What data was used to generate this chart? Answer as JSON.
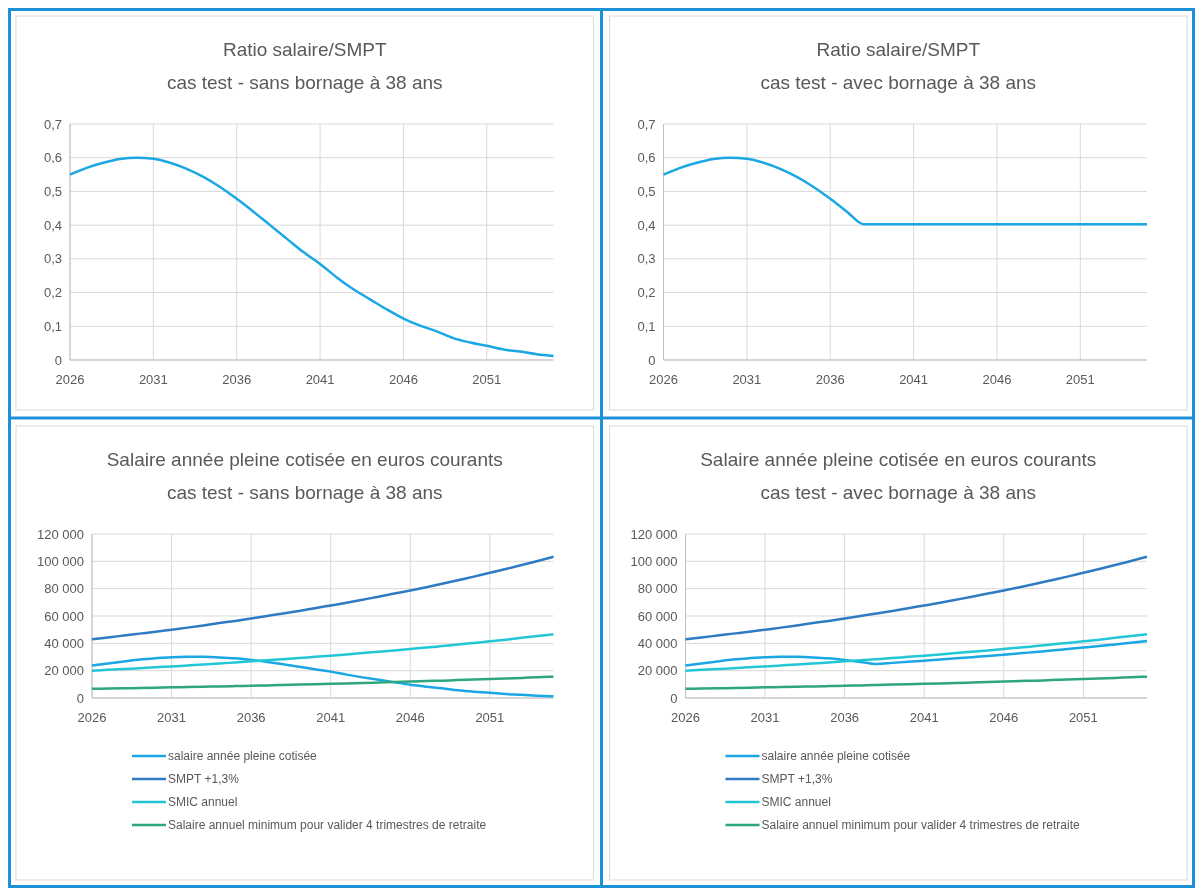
{
  "chart_data": [
    {
      "type": "line",
      "title": "Ratio salaire/SMPT\ncas test - sans bornage à 38 ans",
      "x": [
        2026,
        2027,
        2028,
        2029,
        2030,
        2031,
        2032,
        2033,
        2034,
        2035,
        2036,
        2037,
        2038,
        2039,
        2040,
        2041,
        2042,
        2043,
        2044,
        2045,
        2046,
        2047,
        2048,
        2049,
        2050,
        2051,
        2052,
        2053,
        2054,
        2055
      ],
      "series": [
        {
          "color": "#1aa7e4",
          "values": [
            0.55,
            0.57,
            0.585,
            0.596,
            0.6,
            0.597,
            0.585,
            0.567,
            0.543,
            0.513,
            0.478,
            0.44,
            0.4,
            0.36,
            0.32,
            0.285,
            0.245,
            0.21,
            0.18,
            0.15,
            0.123,
            0.102,
            0.085,
            0.065,
            0.052,
            0.042,
            0.031,
            0.025,
            0.017,
            0.012
          ]
        }
      ],
      "xlim": [
        2026,
        2055
      ],
      "xticks": [
        2026,
        2031,
        2036,
        2041,
        2046,
        2051
      ],
      "ylim": [
        0,
        0.7
      ],
      "yticks": [
        {
          "value": 0,
          "label": "0"
        },
        {
          "value": 0.1,
          "label": "0,1"
        },
        {
          "value": 0.2,
          "label": "0,2"
        },
        {
          "value": 0.3,
          "label": "0,3"
        },
        {
          "value": 0.4,
          "label": "0,4"
        },
        {
          "value": 0.5,
          "label": "0,5"
        },
        {
          "value": 0.6,
          "label": "0,6"
        },
        {
          "value": 0.7,
          "label": "0,7"
        }
      ],
      "grid": true,
      "legend": false
    },
    {
      "type": "line",
      "title": "Ratio salaire/SMPT\ncas test - avec bornage à 38 ans",
      "x": [
        2026,
        2027,
        2028,
        2029,
        2030,
        2031,
        2032,
        2033,
        2034,
        2035,
        2036,
        2037,
        2038,
        2039,
        2040,
        2041,
        2042,
        2043,
        2044,
        2045,
        2046,
        2047,
        2048,
        2049,
        2050,
        2051,
        2052,
        2053,
        2054,
        2055
      ],
      "series": [
        {
          "color": "#1aa7e4",
          "values": [
            0.55,
            0.57,
            0.585,
            0.596,
            0.6,
            0.597,
            0.585,
            0.567,
            0.543,
            0.513,
            0.478,
            0.44,
            0.403,
            0.403,
            0.403,
            0.403,
            0.403,
            0.403,
            0.403,
            0.403,
            0.403,
            0.403,
            0.403,
            0.403,
            0.403,
            0.403,
            0.403,
            0.403,
            0.403,
            0.403
          ]
        }
      ],
      "xlim": [
        2026,
        2055
      ],
      "xticks": [
        2026,
        2031,
        2036,
        2041,
        2046,
        2051
      ],
      "ylim": [
        0,
        0.7
      ],
      "yticks": [
        {
          "value": 0,
          "label": "0"
        },
        {
          "value": 0.1,
          "label": "0,1"
        },
        {
          "value": 0.2,
          "label": "0,2"
        },
        {
          "value": 0.3,
          "label": "0,3"
        },
        {
          "value": 0.4,
          "label": "0,4"
        },
        {
          "value": 0.5,
          "label": "0,5"
        },
        {
          "value": 0.6,
          "label": "0,6"
        },
        {
          "value": 0.7,
          "label": "0,7"
        }
      ],
      "grid": true,
      "legend": false
    },
    {
      "type": "line",
      "title": "Salaire année pleine cotisée en euros courants\ncas test - sans bornage à 38 ans",
      "x": [
        2026,
        2027,
        2028,
        2029,
        2030,
        2031,
        2032,
        2033,
        2034,
        2035,
        2036,
        2037,
        2038,
        2039,
        2040,
        2041,
        2042,
        2043,
        2044,
        2045,
        2046,
        2047,
        2048,
        2049,
        2050,
        2051,
        2052,
        2053,
        2054,
        2055
      ],
      "series": [
        {
          "name": "salaire année pleine cotisée",
          "color": "#1aa7e4",
          "values": [
            23700,
            25300,
            26700,
            28100,
            29100,
            29900,
            30200,
            30100,
            29700,
            29000,
            27800,
            26400,
            24700,
            22900,
            21000,
            19300,
            17100,
            15100,
            13300,
            11500,
            9700,
            8300,
            7100,
            5600,
            4600,
            3900,
            2900,
            2400,
            1700,
            1200
          ]
        },
        {
          "name": "SMPT +1,3%",
          "color": "#2e7bc4",
          "values": [
            43000,
            44300,
            45700,
            47100,
            48500,
            50000,
            51500,
            53100,
            54800,
            56400,
            58200,
            60000,
            61800,
            63700,
            65700,
            67700,
            69700,
            71900,
            74100,
            76400,
            78700,
            81100,
            83600,
            86200,
            88800,
            91600,
            94400,
            97300,
            100300,
            103300
          ]
        },
        {
          "name": "SMIC annuel",
          "color": "#22c7d6",
          "values": [
            20000,
            20600,
            21200,
            21800,
            22500,
            23100,
            23800,
            24500,
            25300,
            26000,
            26800,
            27600,
            28400,
            29200,
            30100,
            31000,
            31900,
            32900,
            33800,
            34800,
            35900,
            36900,
            38000,
            39100,
            40300,
            41500,
            42700,
            44000,
            45300,
            46600
          ]
        },
        {
          "name": "Salaire annuel minimum pour valider 4 trimestres de retraite",
          "color": "#2ea77e",
          "values": [
            6700,
            6900,
            7100,
            7300,
            7500,
            7800,
            8000,
            8200,
            8500,
            8700,
            9000,
            9200,
            9500,
            9800,
            10100,
            10400,
            10700,
            11000,
            11300,
            11700,
            12000,
            12400,
            12700,
            13100,
            13500,
            13900,
            14300,
            14700,
            15200,
            15600
          ]
        }
      ],
      "xlim": [
        2026,
        2055
      ],
      "xticks": [
        2026,
        2031,
        2036,
        2041,
        2046,
        2051
      ],
      "ylim": [
        0,
        120000
      ],
      "yticks": [
        {
          "value": 0,
          "label": "0"
        },
        {
          "value": 20000,
          "label": "20 000"
        },
        {
          "value": 40000,
          "label": "40 000"
        },
        {
          "value": 60000,
          "label": "60 000"
        },
        {
          "value": 80000,
          "label": "80 000"
        },
        {
          "value": 100000,
          "label": "100 000"
        },
        {
          "value": 120000,
          "label": "120 000"
        }
      ],
      "grid": true,
      "legend": "bottom"
    },
    {
      "type": "line",
      "title": "Salaire année pleine cotisée en euros courants\ncas test - avec bornage à 38 ans",
      "x": [
        2026,
        2027,
        2028,
        2029,
        2030,
        2031,
        2032,
        2033,
        2034,
        2035,
        2036,
        2037,
        2038,
        2039,
        2040,
        2041,
        2042,
        2043,
        2044,
        2045,
        2046,
        2047,
        2048,
        2049,
        2050,
        2051,
        2052,
        2053,
        2054,
        2055
      ],
      "series": [
        {
          "name": "salaire année pleine cotisée",
          "color": "#1aa7e4",
          "values": [
            23700,
            25300,
            26700,
            28100,
            29100,
            29900,
            30200,
            30100,
            29700,
            29000,
            27800,
            26400,
            24900,
            25700,
            26500,
            27300,
            28100,
            29000,
            29900,
            30800,
            31700,
            32700,
            33700,
            34700,
            35800,
            36900,
            38000,
            39200,
            40400,
            41700
          ]
        },
        {
          "name": "SMPT +1,3%",
          "color": "#2e7bc4",
          "values": [
            43000,
            44300,
            45700,
            47100,
            48500,
            50000,
            51500,
            53100,
            54800,
            56400,
            58200,
            60000,
            61800,
            63700,
            65700,
            67700,
            69700,
            71900,
            74100,
            76400,
            78700,
            81100,
            83600,
            86200,
            88800,
            91600,
            94400,
            97300,
            100300,
            103300
          ]
        },
        {
          "name": "SMIC annuel",
          "color": "#22c7d6",
          "values": [
            20000,
            20600,
            21200,
            21800,
            22500,
            23100,
            23800,
            24500,
            25300,
            26000,
            26800,
            27600,
            28400,
            29200,
            30100,
            31000,
            31900,
            32900,
            33800,
            34800,
            35900,
            36900,
            38000,
            39100,
            40300,
            41500,
            42700,
            44000,
            45300,
            46600
          ]
        },
        {
          "name": "Salaire annuel minimum pour valider 4 trimestres de retraite",
          "color": "#2ea77e",
          "values": [
            6700,
            6900,
            7100,
            7300,
            7500,
            7800,
            8000,
            8200,
            8500,
            8700,
            9000,
            9200,
            9500,
            9800,
            10100,
            10400,
            10700,
            11000,
            11300,
            11700,
            12000,
            12400,
            12700,
            13100,
            13500,
            13900,
            14300,
            14700,
            15200,
            15600
          ]
        }
      ],
      "xlim": [
        2026,
        2055
      ],
      "xticks": [
        2026,
        2031,
        2036,
        2041,
        2046,
        2051
      ],
      "ylim": [
        0,
        120000
      ],
      "yticks": [
        {
          "value": 0,
          "label": "0"
        },
        {
          "value": 20000,
          "label": "20 000"
        },
        {
          "value": 40000,
          "label": "40 000"
        },
        {
          "value": 60000,
          "label": "60 000"
        },
        {
          "value": 80000,
          "label": "80 000"
        },
        {
          "value": 100000,
          "label": "100 000"
        },
        {
          "value": 120000,
          "label": "120 000"
        }
      ],
      "grid": true,
      "legend": "bottom"
    }
  ]
}
